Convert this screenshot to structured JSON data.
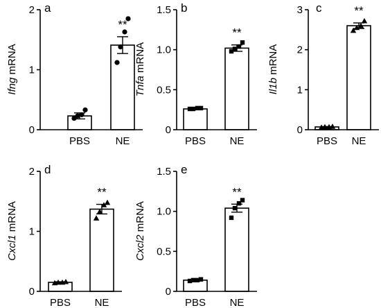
{
  "chart_data": [
    {
      "type": "bar",
      "panel": "a",
      "ylabel_italic": "Ifng",
      "ylabel_rest": " mRNA",
      "categories": [
        "PBS",
        "NE"
      ],
      "values": [
        0.23,
        1.41
      ],
      "errors": [
        0.05,
        0.14
      ],
      "points": [
        [
          0.19,
          0.23,
          0.25,
          0.33
        ],
        [
          1.12,
          1.38,
          1.63,
          1.85
        ]
      ],
      "marker": "circle",
      "ylim": [
        0,
        2
      ],
      "yticks": [
        0,
        1,
        2
      ],
      "ytick_labels": [
        "0",
        "1",
        "2"
      ],
      "significance": [
        "",
        "**"
      ]
    },
    {
      "type": "bar",
      "panel": "b",
      "ylabel_italic": "Tnfa",
      "ylabel_rest": " mRNA",
      "categories": [
        "PBS",
        "NE"
      ],
      "values": [
        0.26,
        1.02
      ],
      "errors": [
        0.01,
        0.04
      ],
      "points": [
        [
          0.26,
          0.26,
          0.27,
          0.27
        ],
        [
          0.98,
          1.01,
          1.04,
          1.09
        ]
      ],
      "marker": "square",
      "ylim": [
        0,
        1.5
      ],
      "yticks": [
        0,
        0.5,
        1.0,
        1.5
      ],
      "ytick_labels": [
        "0",
        "0.5",
        "1.0",
        "1.5"
      ],
      "significance": [
        "",
        "**"
      ]
    },
    {
      "type": "bar",
      "panel": "c",
      "ylabel_italic": "Il1b",
      "ylabel_rest": " mRNA",
      "categories": [
        "PBS",
        "NE"
      ],
      "values": [
        0.07,
        2.6
      ],
      "errors": [
        0.01,
        0.07
      ],
      "points": [
        [
          0.06,
          0.07,
          0.07,
          0.08
        ],
        [
          2.48,
          2.55,
          2.6,
          2.72
        ]
      ],
      "marker": "triangle",
      "ylim": [
        0,
        3
      ],
      "yticks": [
        0,
        1,
        2,
        3
      ],
      "ytick_labels": [
        "0",
        "1",
        "2",
        "3"
      ],
      "significance": [
        "",
        "**"
      ]
    },
    {
      "type": "bar",
      "panel": "d",
      "ylabel_italic": "Cxcl1",
      "ylabel_rest": " mRNA",
      "categories": [
        "PBS",
        "NE"
      ],
      "values": [
        0.15,
        1.37
      ],
      "errors": [
        0.01,
        0.08
      ],
      "points": [
        [
          0.14,
          0.15,
          0.15,
          0.16
        ],
        [
          1.22,
          1.33,
          1.44,
          1.48
        ]
      ],
      "marker": "triangle",
      "ylim": [
        0,
        2
      ],
      "yticks": [
        0,
        1,
        2
      ],
      "ytick_labels": [
        "0",
        "1",
        "2"
      ],
      "significance": [
        "",
        "**"
      ]
    },
    {
      "type": "bar",
      "panel": "e",
      "ylabel_italic": "Cxcl2",
      "ylabel_rest": " mRNA",
      "categories": [
        "PBS",
        "NE"
      ],
      "values": [
        0.14,
        1.04
      ],
      "errors": [
        0.01,
        0.05
      ],
      "points": [
        [
          0.13,
          0.14,
          0.14,
          0.15
        ],
        [
          0.92,
          1.04,
          1.1,
          1.14
        ]
      ],
      "marker": "square",
      "ylim": [
        0,
        1.5
      ],
      "yticks": [
        0,
        0.5,
        1.0,
        1.5
      ],
      "ytick_labels": [
        "0",
        "0.5",
        "1.0",
        "1.5"
      ],
      "significance": [
        "",
        "**"
      ]
    }
  ]
}
